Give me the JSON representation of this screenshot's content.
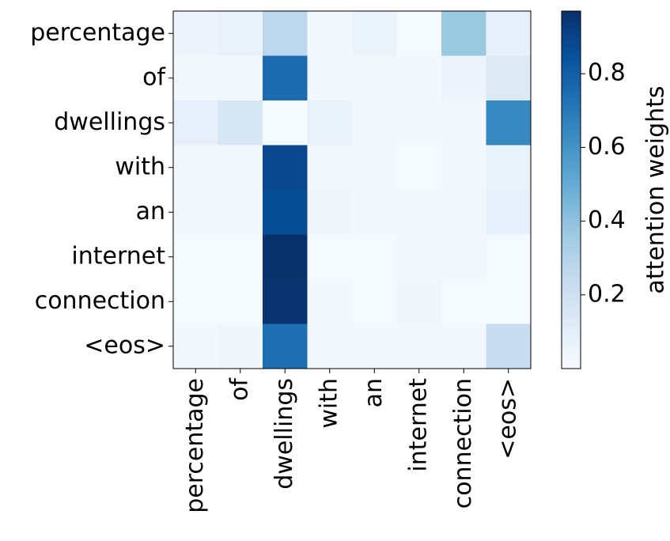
{
  "chart_data": {
    "type": "heatmap",
    "title": "",
    "x_tokens": [
      "percentage",
      "of",
      "dwellings",
      "with",
      "an",
      "internet",
      "connection",
      "<eos>"
    ],
    "y_tokens": [
      "percentage",
      "of",
      "dwellings",
      "with",
      "an",
      "internet",
      "connection",
      "<eos>"
    ],
    "values": [
      [
        0.05,
        0.07,
        0.27,
        0.02,
        0.06,
        0.01,
        0.37,
        0.08
      ],
      [
        0.02,
        0.03,
        0.75,
        0.03,
        0.03,
        0.02,
        0.05,
        0.13
      ],
      [
        0.08,
        0.15,
        0.01,
        0.07,
        0.02,
        0.02,
        0.02,
        0.64
      ],
      [
        0.02,
        0.03,
        0.88,
        0.02,
        0.02,
        0.01,
        0.02,
        0.07
      ],
      [
        0.02,
        0.03,
        0.86,
        0.04,
        0.02,
        0.02,
        0.03,
        0.08
      ],
      [
        0.01,
        0.01,
        0.97,
        0.01,
        0.01,
        0.02,
        0.03,
        0.01
      ],
      [
        0.01,
        0.01,
        0.96,
        0.02,
        0.01,
        0.04,
        0.01,
        0.01
      ],
      [
        0.02,
        0.04,
        0.74,
        0.03,
        0.02,
        0.02,
        0.02,
        0.23
      ]
    ],
    "colorbar": {
      "label": "attention weights",
      "min": 0.0,
      "max": 0.97,
      "ticks": [
        0.2,
        0.4,
        0.6,
        0.8
      ],
      "colormap": "Blues"
    },
    "grid": false
  }
}
